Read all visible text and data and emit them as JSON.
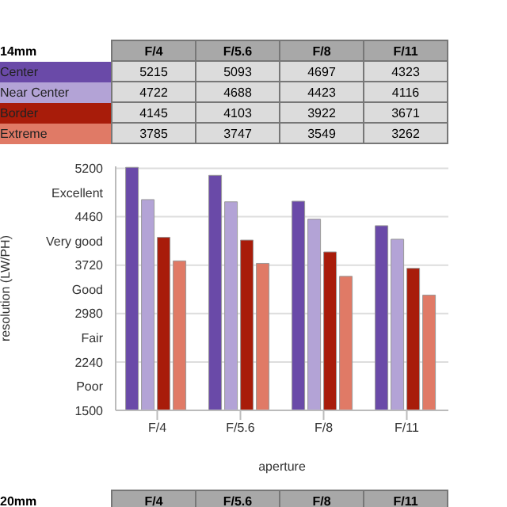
{
  "chart_data": {
    "type": "bar",
    "title": "14mm",
    "categories": [
      "F/4",
      "F/5.6",
      "F/8",
      "F/11"
    ],
    "series": [
      {
        "name": "Center",
        "color": "#6a4aa8",
        "values": [
          5215,
          5093,
          4697,
          4323
        ]
      },
      {
        "name": "Near Center",
        "color": "#b3a3d6",
        "values": [
          4722,
          4688,
          4423,
          4116
        ]
      },
      {
        "name": "Border",
        "color": "#a81c0a",
        "values": [
          4145,
          4103,
          3922,
          3671
        ]
      },
      {
        "name": "Extreme",
        "color": "#e07a66",
        "values": [
          3785,
          3747,
          3549,
          3262
        ]
      }
    ],
    "xlabel": "aperture",
    "ylabel": "resolution (LW/PH)",
    "ylim": [
      1500,
      5230
    ],
    "yticks": [
      1500,
      {
        "value": 1870,
        "label": "Poor"
      },
      2240,
      {
        "value": 2610,
        "label": "Fair"
      },
      2980,
      {
        "value": 3350,
        "label": "Good"
      },
      3720,
      {
        "value": 4090,
        "label": "Very good"
      },
      4460,
      {
        "value": 4830,
        "label": "Excellent"
      },
      5200
    ],
    "grid": "y",
    "legend": "top",
    "data_labels": true,
    "annotations": [
      "20mm"
    ]
  }
}
